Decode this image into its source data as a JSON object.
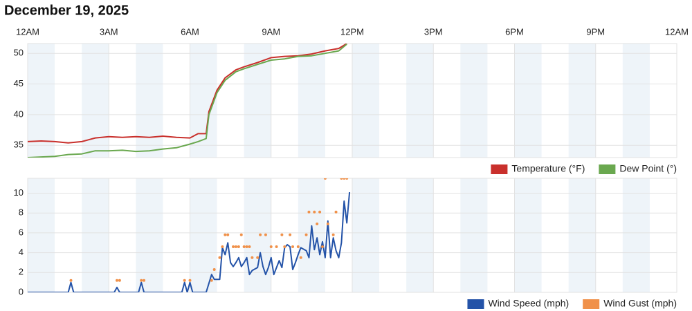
{
  "title": "December 19, 2025",
  "time_axis": {
    "xlim": [
      0,
      24
    ],
    "xticks": [
      {
        "value": 0,
        "label": "12AM"
      },
      {
        "value": 3,
        "label": "3AM"
      },
      {
        "value": 6,
        "label": "6AM"
      },
      {
        "value": 9,
        "label": "9AM"
      },
      {
        "value": 12,
        "label": "12PM"
      },
      {
        "value": 15,
        "label": "3PM"
      },
      {
        "value": 18,
        "label": "6PM"
      },
      {
        "value": 21,
        "label": "9PM"
      },
      {
        "value": 24,
        "label": "12AM"
      }
    ]
  },
  "chart_data": [
    {
      "type": "line",
      "ylim": [
        33,
        51.6
      ],
      "yticks": [
        35,
        40,
        45,
        50
      ],
      "grid": true,
      "legend": "bottom-right",
      "series": [
        {
          "name": "Temperature (°F)",
          "color": "#c9302c",
          "x": [
            0,
            0.5,
            1,
            1.5,
            2,
            2.5,
            3,
            3.5,
            4,
            4.5,
            5,
            5.5,
            6,
            6.3,
            6.6,
            6.7,
            7,
            7.3,
            7.7,
            8,
            8.5,
            9,
            9.5,
            10,
            10.5,
            11,
            11.5,
            11.8
          ],
          "values": [
            35.6,
            35.7,
            35.6,
            35.4,
            35.6,
            36.2,
            36.4,
            36.3,
            36.4,
            36.3,
            36.5,
            36.3,
            36.2,
            36.9,
            36.9,
            40.5,
            44,
            46,
            47.3,
            47.8,
            48.5,
            49.3,
            49.5,
            49.6,
            49.9,
            50.4,
            50.8,
            51.6
          ]
        },
        {
          "name": "Dew Point (°)",
          "color": "#6aa84f",
          "x": [
            0,
            0.5,
            1,
            1.5,
            2,
            2.5,
            3,
            3.5,
            4,
            4.5,
            5,
            5.5,
            6,
            6.3,
            6.6,
            6.7,
            7,
            7.3,
            7.7,
            8,
            8.5,
            9,
            9.5,
            10,
            10.5,
            11,
            11.5,
            11.8
          ],
          "values": [
            33,
            33.1,
            33.2,
            33.5,
            33.6,
            34.1,
            34.1,
            34.2,
            34,
            34.1,
            34.4,
            34.6,
            35.2,
            35.6,
            36.1,
            40,
            43.6,
            45.6,
            47,
            47.5,
            48.2,
            48.9,
            49.1,
            49.5,
            49.6,
            50,
            50.4,
            51.5
          ]
        }
      ]
    },
    {
      "type": "line",
      "ylim": [
        0,
        11.5
      ],
      "yticks": [
        0,
        2,
        4,
        6,
        8,
        10
      ],
      "grid": true,
      "legend": "bottom-right",
      "series": [
        {
          "name": "Wind Speed (mph)",
          "color": "#2453a8",
          "style": "line",
          "x": [
            0,
            1.5,
            1.6,
            1.7,
            3.2,
            3.3,
            3.4,
            4.1,
            4.2,
            4.3,
            5.7,
            5.8,
            5.9,
            6,
            6.1,
            6.6,
            6.8,
            6.9,
            7.1,
            7.2,
            7.3,
            7.4,
            7.5,
            7.6,
            7.7,
            7.8,
            7.9,
            8,
            8.1,
            8.2,
            8.3,
            8.5,
            8.6,
            8.7,
            8.8,
            8.9,
            9,
            9.1,
            9.2,
            9.3,
            9.4,
            9.5,
            9.6,
            9.7,
            9.8,
            9.9,
            10,
            10.1,
            10.3,
            10.4,
            10.5,
            10.6,
            10.7,
            10.8,
            10.9,
            11,
            11.1,
            11.2,
            11.3,
            11.4,
            11.5,
            11.6,
            11.7,
            11.8,
            11.9
          ],
          "values": [
            0,
            0,
            1,
            0,
            0,
            0.5,
            0,
            0,
            1,
            0,
            0,
            1,
            0,
            1,
            0,
            0,
            1.8,
            1.3,
            1.3,
            4.5,
            3.8,
            5,
            3,
            2.6,
            3,
            3.5,
            2.6,
            3,
            3.5,
            1.8,
            2.2,
            2.5,
            4,
            2.6,
            1.8,
            2.5,
            3.5,
            1.8,
            2.5,
            3.2,
            2.5,
            4.5,
            4.8,
            4.6,
            2.3,
            3,
            3.8,
            4.5,
            4.2,
            3.5,
            6.7,
            4.3,
            5.5,
            3.8,
            5.1,
            3.5,
            7.2,
            3.5,
            5.5,
            4.2,
            3.5,
            5,
            9.2,
            7,
            10.1
          ]
        },
        {
          "name": "Wind Gust (mph)",
          "color": "#f0914a",
          "style": "dots",
          "x": [
            1.6,
            3.3,
            3.4,
            4.2,
            4.3,
            5.8,
            6,
            6.8,
            6.9,
            7.1,
            7.2,
            7.3,
            7.4,
            7.6,
            7.7,
            7.8,
            7.9,
            8,
            8.1,
            8.2,
            8.3,
            8.5,
            8.6,
            8.8,
            9,
            9.2,
            9.4,
            9.5,
            9.7,
            9.8,
            10,
            10.1,
            10.3,
            10.4,
            10.6,
            10.7,
            10.8,
            10.9,
            11,
            11.1,
            11.3,
            11.4,
            11.6,
            11.7,
            11.8
          ],
          "values": [
            1.2,
            1.2,
            1.2,
            1.2,
            1.2,
            1.2,
            1.2,
            1.2,
            2.3,
            3.5,
            4.6,
            5.8,
            5.8,
            4.6,
            4.6,
            4.6,
            5.8,
            4.6,
            4.6,
            4.6,
            3.5,
            3.5,
            5.8,
            5.8,
            4.6,
            4.6,
            5.8,
            4.6,
            5.8,
            4.6,
            4.6,
            3.5,
            5.8,
            8.1,
            8.1,
            6.9,
            8.1,
            4.6,
            11.5,
            6.9,
            5.8,
            8.1,
            11.5,
            11.5,
            11.5
          ]
        }
      ]
    }
  ]
}
